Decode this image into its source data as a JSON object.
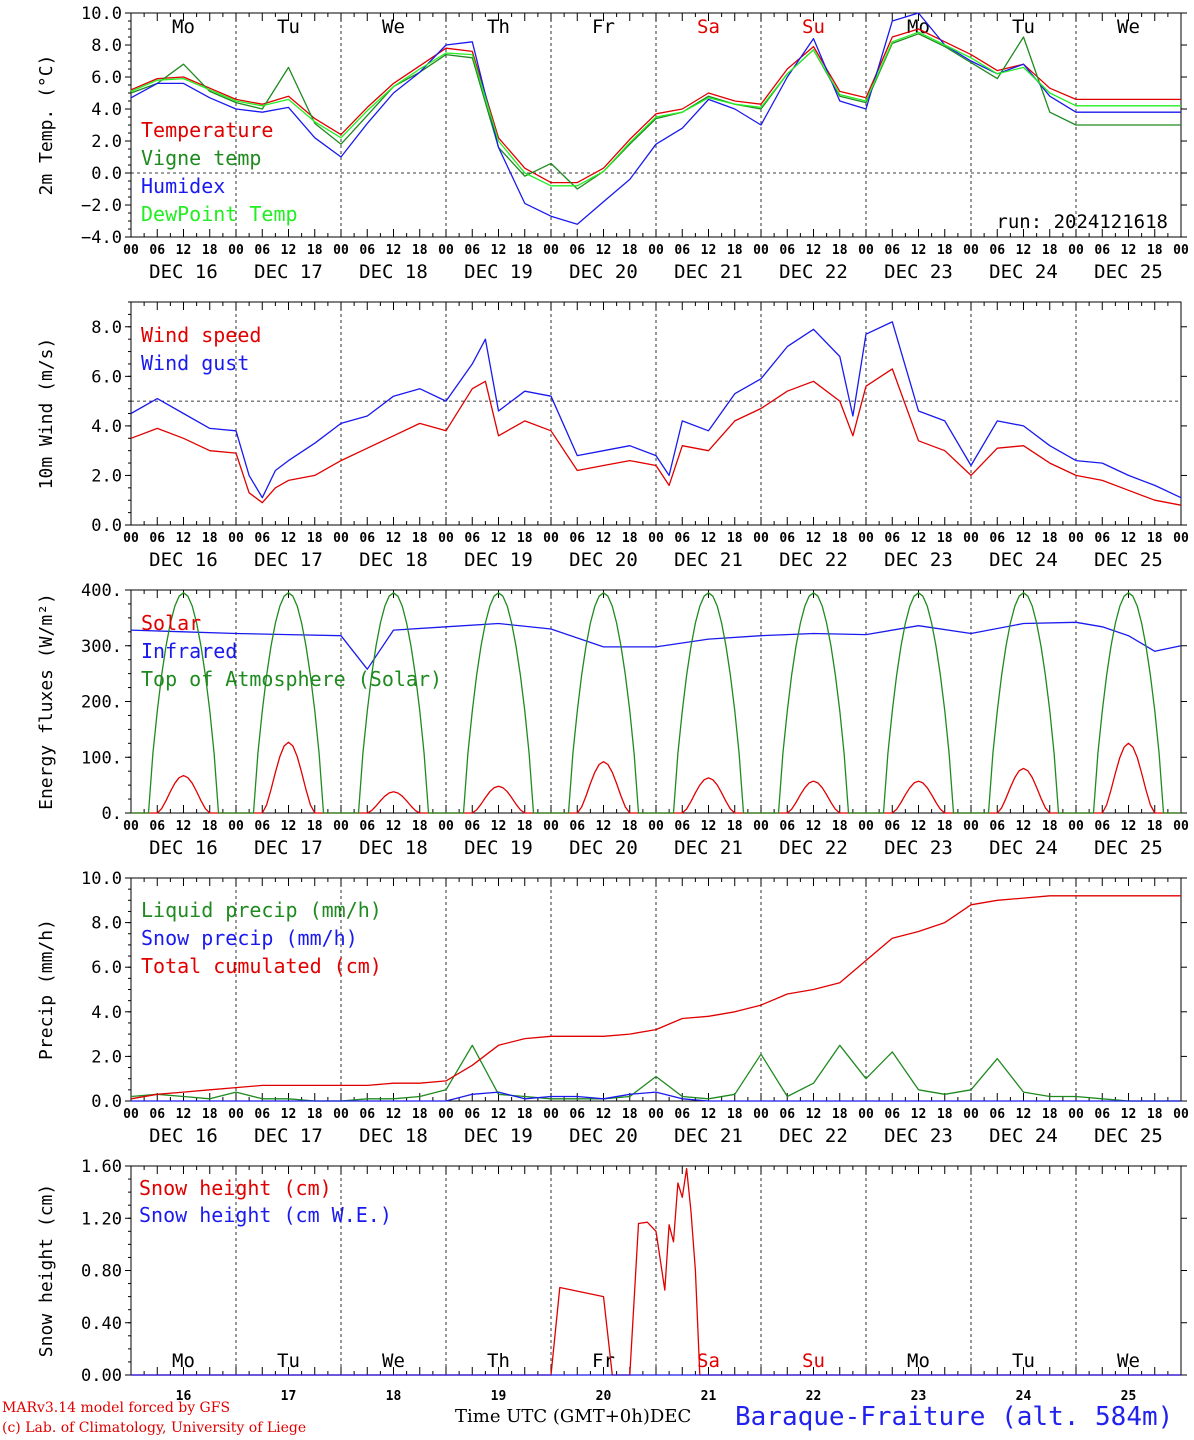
{
  "meta": {
    "run": "run: 2024121618",
    "credit_line1": "MARv3.14 model forced by GFS",
    "credit_line2": "(c) Lab. of Climatology, University of Liege",
    "time_axis_label": "Time UTC (GMT+0h)",
    "time_axis_month": "DEC",
    "station": "Baraque-Fraiture (alt. 584m)"
  },
  "colors": {
    "red": "#e00000",
    "green": "#1f8a1f",
    "blue": "#1a1aee",
    "lightgreen": "#22ee22",
    "weekend": "#e00000",
    "axis": "#000000"
  },
  "time_axis": {
    "days": [
      "DEC 16",
      "DEC 17",
      "DEC 18",
      "DEC 19",
      "DEC 20",
      "DEC 21",
      "DEC 22",
      "DEC 23",
      "DEC 24",
      "DEC 25"
    ],
    "weekday_labels": [
      "Mo",
      "Tu",
      "We",
      "Th",
      "Fr",
      "Sa",
      "Su",
      "Mo",
      "Tu",
      "We"
    ],
    "weekend_flags": [
      false,
      false,
      false,
      false,
      false,
      true,
      true,
      false,
      false,
      false
    ],
    "day_numbers": [
      "16",
      "17",
      "18",
      "19",
      "20",
      "21",
      "22",
      "23",
      "24",
      "25"
    ],
    "hour_ticks": [
      "00",
      "06",
      "12",
      "18"
    ],
    "xlim_hours": [
      0,
      240
    ]
  },
  "chart_data": [
    {
      "type": "line",
      "ylabel": "2m Temp. (°C)",
      "ylim": [
        -4,
        10
      ],
      "yticks": [
        "−4.0",
        "−2.0",
        "0.0",
        "2.0",
        "4.0",
        "6.0",
        "8.0",
        "10.0"
      ],
      "ytick_values": [
        -4,
        -2,
        0,
        2,
        4,
        6,
        8,
        10
      ],
      "refline": 0,
      "series": [
        {
          "name": "Temperature",
          "color": "#e00000",
          "x": [
            0,
            6,
            12,
            18,
            24,
            30,
            36,
            42,
            48,
            54,
            60,
            66,
            72,
            78,
            84,
            90,
            96,
            102,
            108,
            114,
            120,
            126,
            132,
            138,
            144,
            150,
            156,
            162,
            168,
            174,
            180,
            186,
            192,
            198,
            204,
            210,
            216,
            222,
            228,
            234,
            240
          ],
          "y": [
            5.2,
            5.9,
            6.0,
            5.3,
            4.6,
            4.3,
            4.8,
            3.4,
            2.4,
            4.1,
            5.6,
            6.7,
            7.8,
            7.6,
            2.2,
            0.3,
            -0.6,
            -0.6,
            0.3,
            2.1,
            3.7,
            4.0,
            5.0,
            4.5,
            4.3,
            6.5,
            7.9,
            5.1,
            4.7,
            8.5,
            9.0,
            8.2,
            7.4,
            6.4,
            6.8,
            5.3,
            4.6,
            4.6,
            4.6,
            4.6,
            4.6
          ]
        },
        {
          "name": "Vigne temp",
          "color": "#1f8a1f",
          "x": [
            0,
            6,
            12,
            18,
            24,
            30,
            36,
            42,
            48,
            54,
            60,
            66,
            72,
            78,
            84,
            90,
            96,
            102,
            108,
            114,
            120,
            126,
            132,
            138,
            144,
            150,
            156,
            162,
            168,
            174,
            180,
            186,
            192,
            198,
            204,
            210,
            216,
            222,
            228,
            234,
            240
          ],
          "y": [
            5.0,
            5.6,
            6.8,
            5.1,
            4.4,
            4.0,
            6.6,
            3.1,
            1.8,
            3.6,
            5.4,
            6.3,
            7.4,
            7.2,
            1.6,
            -0.2,
            0.6,
            -1.0,
            0.1,
            1.8,
            3.4,
            3.8,
            4.8,
            4.3,
            4.0,
            6.2,
            7.7,
            4.8,
            4.4,
            8.1,
            8.7,
            7.9,
            6.9,
            5.9,
            8.5,
            3.8,
            3.0,
            3.0,
            3.0,
            3.0,
            3.0
          ]
        },
        {
          "name": "Humidex",
          "color": "#1a1aee",
          "x": [
            0,
            6,
            12,
            18,
            24,
            30,
            36,
            42,
            48,
            54,
            60,
            66,
            72,
            78,
            84,
            90,
            96,
            102,
            108,
            114,
            120,
            126,
            132,
            138,
            144,
            150,
            156,
            162,
            168,
            174,
            180,
            186,
            192,
            198,
            204,
            210,
            216,
            222,
            228,
            234,
            240
          ],
          "y": [
            4.7,
            5.6,
            5.6,
            4.7,
            4.0,
            3.8,
            4.1,
            2.2,
            1.0,
            3.1,
            5.0,
            6.3,
            8.0,
            8.2,
            1.6,
            -1.9,
            -2.7,
            -3.2,
            -1.8,
            -0.4,
            1.8,
            2.8,
            4.6,
            4.0,
            3.0,
            6.0,
            8.4,
            4.5,
            4.0,
            9.5,
            10.0,
            8.0,
            7.0,
            6.2,
            6.8,
            4.8,
            3.8,
            3.8,
            3.8,
            3.8,
            3.8
          ]
        },
        {
          "name": "DewPoint Temp",
          "color": "#22ee22",
          "x": [
            0,
            6,
            12,
            18,
            24,
            30,
            36,
            42,
            48,
            54,
            60,
            66,
            72,
            78,
            84,
            90,
            96,
            102,
            108,
            114,
            120,
            126,
            132,
            138,
            144,
            150,
            156,
            162,
            168,
            174,
            180,
            186,
            192,
            198,
            204,
            210,
            216,
            222,
            228,
            234,
            240
          ],
          "y": [
            5.1,
            5.8,
            5.9,
            5.2,
            4.5,
            4.2,
            4.6,
            3.2,
            2.2,
            3.9,
            5.4,
            6.5,
            7.5,
            7.4,
            2.0,
            0.0,
            -0.8,
            -0.8,
            0.1,
            1.9,
            3.5,
            3.8,
            4.7,
            4.3,
            4.1,
            6.2,
            7.7,
            4.9,
            4.5,
            8.2,
            8.8,
            8.0,
            7.2,
            6.2,
            6.6,
            5.0,
            4.2,
            4.2,
            4.2,
            4.2,
            4.2
          ]
        }
      ]
    },
    {
      "type": "line",
      "ylabel": "10m Wind (m/s)",
      "ylim": [
        0,
        9
      ],
      "yticks": [
        "0.0",
        "2.0",
        "4.0",
        "6.0",
        "8.0"
      ],
      "ytick_values": [
        0,
        2,
        4,
        6,
        8
      ],
      "refline": 5,
      "series": [
        {
          "name": "Wind speed",
          "color": "#e00000",
          "x": [
            0,
            6,
            12,
            18,
            24,
            27,
            30,
            33,
            36,
            42,
            48,
            54,
            60,
            66,
            72,
            78,
            81,
            84,
            90,
            96,
            102,
            108,
            114,
            120,
            123,
            126,
            132,
            138,
            144,
            150,
            156,
            162,
            165,
            168,
            174,
            180,
            186,
            192,
            198,
            204,
            210,
            216,
            222,
            228,
            234,
            240
          ],
          "y": [
            3.5,
            3.9,
            3.5,
            3.0,
            2.9,
            1.3,
            0.9,
            1.5,
            1.8,
            2.0,
            2.6,
            3.1,
            3.6,
            4.1,
            3.8,
            5.5,
            5.8,
            3.6,
            4.2,
            3.8,
            2.2,
            2.4,
            2.6,
            2.4,
            1.6,
            3.2,
            3.0,
            4.2,
            4.7,
            5.4,
            5.8,
            5.0,
            3.6,
            5.6,
            6.3,
            3.4,
            3.0,
            2.0,
            3.1,
            3.2,
            2.5,
            2.0,
            1.8,
            1.4,
            1.0,
            0.8
          ]
        },
        {
          "name": "Wind gust",
          "color": "#1a1aee",
          "x": [
            0,
            6,
            12,
            18,
            24,
            27,
            30,
            33,
            36,
            42,
            48,
            54,
            60,
            66,
            72,
            78,
            81,
            84,
            90,
            96,
            102,
            108,
            114,
            120,
            123,
            126,
            132,
            138,
            144,
            150,
            156,
            162,
            165,
            168,
            174,
            180,
            186,
            192,
            198,
            204,
            210,
            216,
            222,
            228,
            234,
            240
          ],
          "y": [
            4.5,
            5.1,
            4.5,
            3.9,
            3.8,
            2.0,
            1.1,
            2.2,
            2.6,
            3.3,
            4.1,
            4.4,
            5.2,
            5.5,
            5.0,
            6.5,
            7.5,
            4.6,
            5.4,
            5.2,
            2.8,
            3.0,
            3.2,
            2.8,
            2.0,
            4.2,
            3.8,
            5.3,
            5.9,
            7.2,
            7.9,
            6.8,
            4.4,
            7.7,
            8.2,
            4.6,
            4.2,
            2.4,
            4.2,
            4.0,
            3.2,
            2.6,
            2.5,
            2.0,
            1.6,
            1.1
          ]
        }
      ]
    },
    {
      "type": "line",
      "ylabel": "Energy fluxes (W/m²)",
      "ylim": [
        0,
        400
      ],
      "yticks": [
        "0.",
        "100.",
        "200.",
        "300.",
        "400."
      ],
      "ytick_values": [
        0,
        100,
        200,
        300,
        400
      ],
      "series": [
        {
          "name": "Solar",
          "color": "#e00000",
          "daily_peak_hour": 12,
          "daily_peaks": [
            67,
            127,
            38,
            48,
            92,
            63,
            57,
            57,
            80,
            125
          ]
        },
        {
          "name": "Infrared",
          "color": "#1a1aee",
          "x": [
            0,
            12,
            24,
            36,
            48,
            54,
            60,
            72,
            84,
            96,
            108,
            120,
            132,
            144,
            156,
            168,
            180,
            192,
            204,
            216,
            222,
            228,
            234,
            240
          ],
          "y": [
            328,
            325,
            322,
            320,
            318,
            258,
            328,
            334,
            340,
            330,
            298,
            298,
            312,
            318,
            322,
            320,
            336,
            322,
            340,
            342,
            334,
            318,
            290,
            300
          ]
        },
        {
          "name": "Top of Atmosphere (Solar)",
          "color": "#1f8a1f",
          "daily_peak_hour": 12,
          "daily_peak": 395
        }
      ]
    },
    {
      "type": "line",
      "ylabel": "Precip (mm/h)",
      "ylim": [
        0,
        10
      ],
      "yticks": [
        "0.0",
        "2.0",
        "4.0",
        "6.0",
        "8.0",
        "10.0"
      ],
      "ytick_values": [
        0,
        2,
        4,
        6,
        8,
        10
      ],
      "series": [
        {
          "name": "Liquid precip (mm/h)",
          "color": "#1f8a1f",
          "x": [
            0,
            6,
            12,
            18,
            24,
            30,
            36,
            42,
            48,
            54,
            60,
            66,
            72,
            78,
            84,
            90,
            96,
            102,
            108,
            114,
            120,
            126,
            132,
            138,
            144,
            150,
            156,
            162,
            168,
            174,
            180,
            186,
            192,
            198,
            204,
            210,
            216,
            222,
            228,
            234,
            240
          ],
          "y": [
            0.2,
            0.3,
            0.2,
            0.1,
            0.4,
            0.1,
            0.1,
            0.0,
            0.0,
            0.1,
            0.1,
            0.2,
            0.5,
            2.5,
            0.3,
            0.2,
            0.1,
            0.1,
            0.1,
            0.2,
            1.1,
            0.2,
            0.1,
            0.3,
            2.1,
            0.2,
            0.8,
            2.5,
            1.0,
            2.2,
            0.5,
            0.3,
            0.5,
            1.9,
            0.4,
            0.2,
            0.2,
            0.1,
            0.0,
            0.0,
            0.0
          ]
        },
        {
          "name": "Snow precip (mm/h)",
          "color": "#1a1aee",
          "x": [
            0,
            72,
            78,
            84,
            90,
            96,
            102,
            108,
            114,
            120,
            126,
            132,
            240
          ],
          "y": [
            0.0,
            0.0,
            0.3,
            0.4,
            0.1,
            0.2,
            0.2,
            0.1,
            0.3,
            0.4,
            0.1,
            0.0,
            0.0
          ]
        },
        {
          "name": "Total cumulated (cm)",
          "color": "#e00000",
          "x": [
            0,
            6,
            12,
            18,
            24,
            30,
            36,
            42,
            48,
            54,
            60,
            66,
            72,
            78,
            84,
            90,
            96,
            102,
            108,
            114,
            120,
            126,
            132,
            138,
            144,
            150,
            156,
            162,
            168,
            174,
            180,
            186,
            192,
            198,
            204,
            210,
            216,
            222,
            228,
            234,
            240
          ],
          "y": [
            0.1,
            0.3,
            0.4,
            0.5,
            0.6,
            0.7,
            0.7,
            0.7,
            0.7,
            0.7,
            0.8,
            0.8,
            0.9,
            1.6,
            2.5,
            2.8,
            2.9,
            2.9,
            2.9,
            3.0,
            3.2,
            3.7,
            3.8,
            4.0,
            4.3,
            4.8,
            5.0,
            5.3,
            6.3,
            7.3,
            7.6,
            8.0,
            8.8,
            9.0,
            9.1,
            9.2,
            9.2,
            9.2,
            9.2,
            9.2,
            9.2
          ]
        }
      ]
    },
    {
      "type": "line",
      "ylabel": "Snow height (cm)",
      "ylim": [
        0,
        1.6
      ],
      "yticks": [
        "0.00",
        "0.40",
        "0.80",
        "1.20",
        "1.60"
      ],
      "ytick_values": [
        0,
        0.4,
        0.8,
        1.2,
        1.6
      ],
      "series": [
        {
          "name": "Snow height (cm)",
          "color": "#e00000",
          "x": [
            0,
            96,
            98,
            108,
            110,
            114,
            116,
            118,
            120,
            122,
            123,
            124,
            125,
            126,
            127,
            128,
            129,
            130,
            132,
            240
          ],
          "y": [
            0,
            0,
            0.67,
            0.6,
            0,
            0,
            1.16,
            1.17,
            1.1,
            0.65,
            1.15,
            1.02,
            1.47,
            1.36,
            1.58,
            1.25,
            0.8,
            0,
            0,
            0
          ]
        },
        {
          "name": "Snow height (cm W.E.)",
          "color": "#1a1aee",
          "x": [
            0,
            240
          ],
          "y": [
            0,
            0
          ]
        }
      ]
    }
  ]
}
